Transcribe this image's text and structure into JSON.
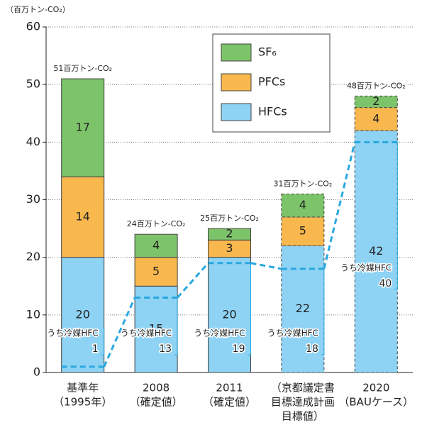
{
  "chart_data": {
    "type": "stacked_bar",
    "y_label": "（百万トン-CO₂）",
    "categories": [
      [
        "基準年",
        "（1995年）"
      ],
      [
        "2008",
        "（確定値）"
      ],
      [
        "2011",
        "（確定値）"
      ],
      [
        "（京都議定書",
        "目標達成計画",
        "目標値）"
      ],
      [
        "2020",
        "（BAUケース）"
      ]
    ],
    "series": [
      {
        "name": "HFCs",
        "color": "#8fd3f4",
        "values": [
          20,
          15,
          20,
          22,
          42
        ]
      },
      {
        "name": "PFCs",
        "color": "#f8b84e",
        "values": [
          14,
          5,
          3,
          5,
          4
        ]
      },
      {
        "name": "SF₆",
        "color": "#7dc36a",
        "values": [
          17,
          4,
          2,
          4,
          2
        ]
      }
    ],
    "totals": {
      "values": [
        51,
        24,
        25,
        31,
        48
      ],
      "labels": [
        "51百万トン-CO₂",
        "24百万トン-CO₂",
        "25百万トン-CO₂",
        "31百万トン-CO₂",
        "48百万トン-CO₂"
      ]
    },
    "refrigerant": {
      "name": "うち冷媒HFC",
      "color": "#29a8e0",
      "values": [
        1,
        13,
        19,
        18,
        40
      ]
    },
    "dashed_outline": [
      false,
      false,
      false,
      true,
      true
    ],
    "ylim": [
      0,
      60
    ],
    "yticks": [
      0,
      10,
      20,
      30,
      40,
      50,
      60
    ],
    "grid": true
  }
}
